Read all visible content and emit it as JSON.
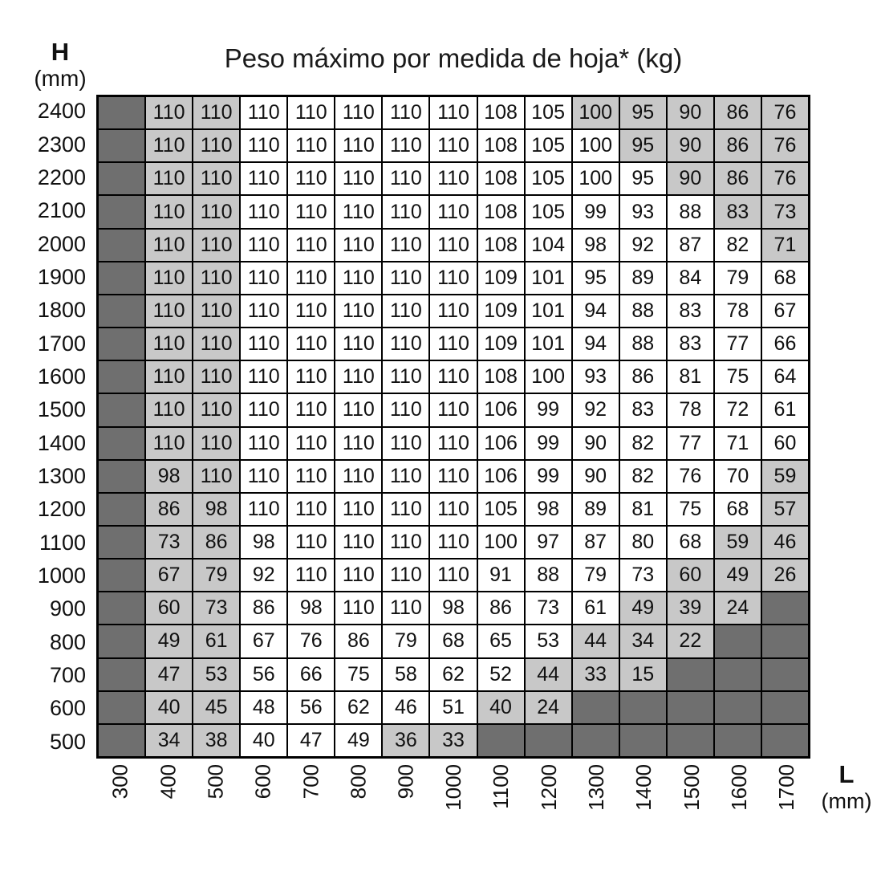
{
  "title": "Peso máximo por medida de hoja* (kg)",
  "y_axis": {
    "name": "H",
    "unit": "(mm)"
  },
  "x_axis": {
    "name": "L",
    "unit": "(mm)"
  },
  "colors": {
    "empty_cell": "#6f6f6f",
    "shaded_cell": "#c8c8c8",
    "normal_cell": "#ffffff",
    "grid_line": "#000000"
  },
  "chart_data": {
    "type": "table",
    "title": "Peso máximo por medida de hoja* (kg)",
    "x_label": "L (mm)",
    "y_label": "H (mm)",
    "shade_legend": {
      "w": "white",
      "g": "light-gray",
      "d": "dark-gray-empty"
    },
    "columns": [
      "300",
      "400",
      "500",
      "600",
      "700",
      "800",
      "900",
      "1000",
      "1100",
      "1200",
      "1300",
      "1400",
      "1500",
      "1600",
      "1700"
    ],
    "rows": [
      {
        "h": "2400",
        "values": [
          "",
          "110",
          "110",
          "110",
          "110",
          "110",
          "110",
          "110",
          "108",
          "105",
          "100",
          "95",
          "90",
          "86",
          "76"
        ],
        "shades": "dggwwwwwwwggggg"
      },
      {
        "h": "2300",
        "values": [
          "",
          "110",
          "110",
          "110",
          "110",
          "110",
          "110",
          "110",
          "108",
          "105",
          "100",
          "95",
          "90",
          "86",
          "76"
        ],
        "shades": "dggwwwwwwwwgggg"
      },
      {
        "h": "2200",
        "values": [
          "",
          "110",
          "110",
          "110",
          "110",
          "110",
          "110",
          "110",
          "108",
          "105",
          "100",
          "95",
          "90",
          "86",
          "76"
        ],
        "shades": "dggwwwwwwwwwggg"
      },
      {
        "h": "2100",
        "values": [
          "",
          "110",
          "110",
          "110",
          "110",
          "110",
          "110",
          "110",
          "108",
          "105",
          "99",
          "93",
          "88",
          "83",
          "73"
        ],
        "shades": "dggwwwwwwwwwwgg"
      },
      {
        "h": "2000",
        "values": [
          "",
          "110",
          "110",
          "110",
          "110",
          "110",
          "110",
          "110",
          "108",
          "104",
          "98",
          "92",
          "87",
          "82",
          "71"
        ],
        "shades": "dggwwwwwwwwwwwg"
      },
      {
        "h": "1900",
        "values": [
          "",
          "110",
          "110",
          "110",
          "110",
          "110",
          "110",
          "110",
          "109",
          "101",
          "95",
          "89",
          "84",
          "79",
          "68"
        ],
        "shades": "dggwwwwwwwwwwww"
      },
      {
        "h": "1800",
        "values": [
          "",
          "110",
          "110",
          "110",
          "110",
          "110",
          "110",
          "110",
          "109",
          "101",
          "94",
          "88",
          "83",
          "78",
          "67"
        ],
        "shades": "dggwwwwwwwwwwww"
      },
      {
        "h": "1700",
        "values": [
          "",
          "110",
          "110",
          "110",
          "110",
          "110",
          "110",
          "110",
          "109",
          "101",
          "94",
          "88",
          "83",
          "77",
          "66"
        ],
        "shades": "dggwwwwwwwwwwww"
      },
      {
        "h": "1600",
        "values": [
          "",
          "110",
          "110",
          "110",
          "110",
          "110",
          "110",
          "110",
          "108",
          "100",
          "93",
          "86",
          "81",
          "75",
          "64"
        ],
        "shades": "dggwwwwwwwwwwww"
      },
      {
        "h": "1500",
        "values": [
          "",
          "110",
          "110",
          "110",
          "110",
          "110",
          "110",
          "110",
          "106",
          "99",
          "92",
          "83",
          "78",
          "72",
          "61"
        ],
        "shades": "dggwwwwwwwwwwww"
      },
      {
        "h": "1400",
        "values": [
          "",
          "110",
          "110",
          "110",
          "110",
          "110",
          "110",
          "110",
          "106",
          "99",
          "90",
          "82",
          "77",
          "71",
          "60"
        ],
        "shades": "dggwwwwwwwwwwww"
      },
      {
        "h": "1300",
        "values": [
          "",
          "98",
          "110",
          "110",
          "110",
          "110",
          "110",
          "110",
          "106",
          "99",
          "90",
          "82",
          "76",
          "70",
          "59"
        ],
        "shades": "dggwwwwwwwwwwwg"
      },
      {
        "h": "1200",
        "values": [
          "",
          "86",
          "98",
          "110",
          "110",
          "110",
          "110",
          "110",
          "105",
          "98",
          "89",
          "81",
          "75",
          "68",
          "57"
        ],
        "shades": "dggwwwwwwwwwwwg"
      },
      {
        "h": "1100",
        "values": [
          "",
          "73",
          "86",
          "98",
          "110",
          "110",
          "110",
          "110",
          "100",
          "97",
          "87",
          "80",
          "68",
          "59",
          "46"
        ],
        "shades": "dggwwwwwwwwwwgg"
      },
      {
        "h": "1000",
        "values": [
          "",
          "67",
          "79",
          "92",
          "110",
          "110",
          "110",
          "110",
          "91",
          "88",
          "79",
          "73",
          "60",
          "49",
          "26"
        ],
        "shades": "dggwwwwwwwwwggg"
      },
      {
        "h": "900",
        "values": [
          "",
          "60",
          "73",
          "86",
          "98",
          "110",
          "110",
          "98",
          "86",
          "73",
          "61",
          "49",
          "39",
          "24",
          ""
        ],
        "shades": "dggwwwwwwwwgggd"
      },
      {
        "h": "800",
        "values": [
          "",
          "49",
          "61",
          "67",
          "76",
          "86",
          "79",
          "68",
          "65",
          "53",
          "44",
          "34",
          "22",
          "",
          ""
        ],
        "shades": "dggwwwwwwwgggdd"
      },
      {
        "h": "700",
        "values": [
          "",
          "47",
          "53",
          "56",
          "66",
          "75",
          "58",
          "62",
          "52",
          "44",
          "33",
          "15",
          "",
          "",
          ""
        ],
        "shades": "dggwwwwwwgggddd"
      },
      {
        "h": "600",
        "values": [
          "",
          "40",
          "45",
          "48",
          "56",
          "62",
          "46",
          "51",
          "40",
          "24",
          "",
          "",
          "",
          "",
          ""
        ],
        "shades": "dggwwwwwggddddd"
      },
      {
        "h": "500",
        "values": [
          "",
          "34",
          "38",
          "40",
          "47",
          "49",
          "36",
          "33",
          "",
          "",
          "",
          "",
          "",
          "",
          ""
        ],
        "shades": "dggwwwggddddddd"
      }
    ]
  }
}
